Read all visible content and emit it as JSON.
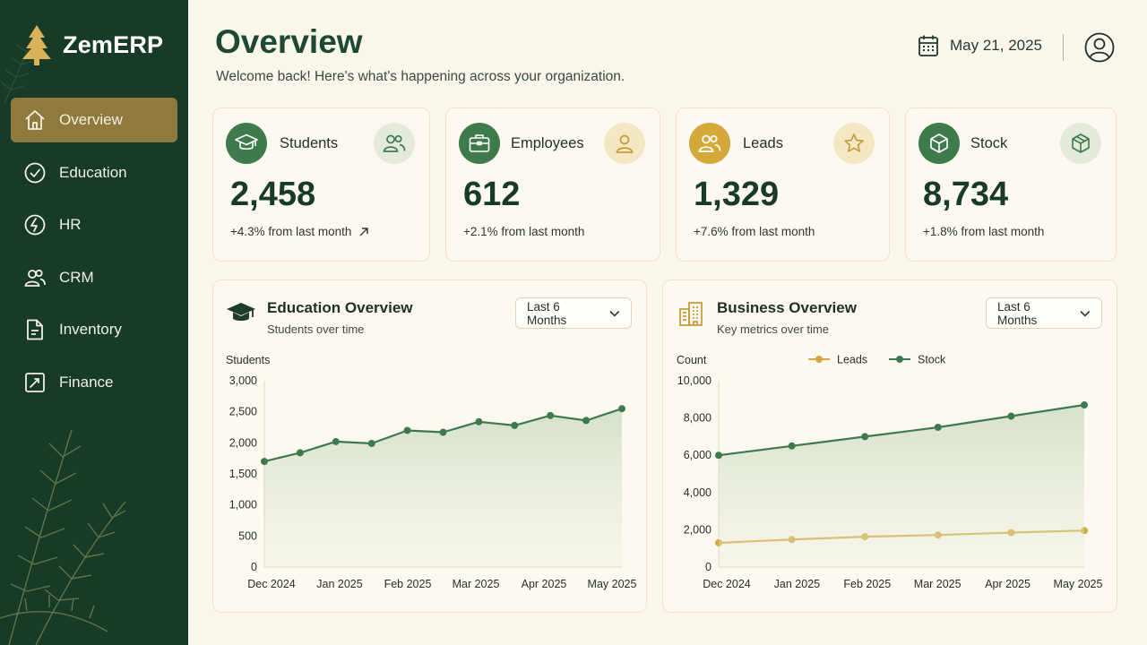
{
  "app": {
    "name": "ZemERP"
  },
  "sidebar": {
    "items": [
      {
        "label": "Overview",
        "icon": "home-icon",
        "active": true
      },
      {
        "label": "Education",
        "icon": "check-circle-icon",
        "active": false
      },
      {
        "label": "HR",
        "icon": "hr-icon",
        "active": false
      },
      {
        "label": "CRM",
        "icon": "users-icon",
        "active": false
      },
      {
        "label": "Inventory",
        "icon": "document-icon",
        "active": false
      },
      {
        "label": "Finance",
        "icon": "chart-icon",
        "active": false
      }
    ]
  },
  "header": {
    "title": "Overview",
    "subtitle": "Welcome back! Here's what's happening across your organization.",
    "date": "May 21, 2025"
  },
  "kpis": [
    {
      "label": "Students",
      "value": "2,458",
      "change": "+4.3% from last month",
      "icon": "graduation-cap-icon",
      "badge": "users-icon"
    },
    {
      "label": "Employees",
      "value": "612",
      "change": "+2.1% from last month",
      "icon": "briefcase-icon",
      "badge": "user-icon"
    },
    {
      "label": "Leads",
      "value": "1,329",
      "change": "+7.6% from last month",
      "icon": "users-icon",
      "badge": "star-icon"
    },
    {
      "label": "Stock",
      "value": "8,734",
      "change": "+1.8% from last month",
      "icon": "box-icon",
      "badge": "box-icon"
    }
  ],
  "colors": {
    "sidebar": "#173b27",
    "accent": "#8e7a3c",
    "green": "#3f7a4c",
    "gold": "#d4a93a",
    "background": "#fbf6ec"
  },
  "education_card": {
    "title": "Education Overview",
    "subtitle": "Students over time",
    "range": "Last 6 Months"
  },
  "business_card": {
    "title": "Business Overview",
    "subtitle": "Key metrics over time",
    "range": "Last 6 Months"
  },
  "chart_data": [
    {
      "type": "area",
      "ylabel": "Students",
      "ylim": [
        0,
        3000
      ],
      "yticks": [
        0,
        500,
        1000,
        1500,
        2000,
        2500,
        3000
      ],
      "ytick_labels": [
        "0",
        "500",
        "1,000",
        "1,500",
        "2,000",
        "2,500",
        "3,000"
      ],
      "xtick_labels": [
        "Dec 2024",
        "Jan 2025",
        "Feb 2025",
        "Mar 2025",
        "Apr 2025",
        "May 2025"
      ],
      "series": [
        {
          "values": [
            1700,
            1840,
            2020,
            1990,
            2200,
            2170,
            2340,
            2280,
            2440,
            2360,
            2550
          ]
        }
      ]
    },
    {
      "type": "line",
      "ylabel": "Count",
      "ylim": [
        0,
        10000
      ],
      "yticks": [
        0,
        2000,
        4000,
        6000,
        8000,
        10000
      ],
      "ytick_labels": [
        "0",
        "2,000",
        "4,000",
        "6,000",
        "8,000",
        "10,000"
      ],
      "xtick_labels": [
        "Dec 2024",
        "Jan 2025",
        "Feb 2025",
        "Mar 2025",
        "Apr 2025",
        "May 2025"
      ],
      "legend": "top",
      "series": [
        {
          "name": "Leads",
          "color": "#d4a93a",
          "values": [
            1300,
            1480,
            1630,
            1720,
            1850,
            1960
          ]
        },
        {
          "name": "Stock",
          "color": "#3f7a4c",
          "values": [
            6000,
            6500,
            7000,
            7500,
            8100,
            8700
          ]
        }
      ]
    }
  ]
}
